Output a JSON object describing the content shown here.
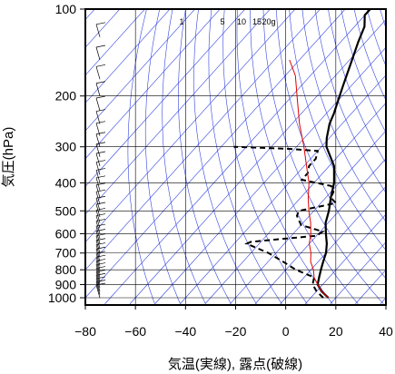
{
  "chart_data": {
    "type": "line",
    "subtype": "skew-t-log-p",
    "xlabel": "気温(実線), 露点(破線)",
    "ylabel": "気圧(hPa)",
    "xlim": [
      -80,
      40
    ],
    "ylim": [
      1050,
      100
    ],
    "y_scale": "log",
    "x_ticks": [
      -80,
      -60,
      -40,
      -20,
      0,
      20,
      40
    ],
    "x_tick_labels": [
      "−80",
      "−60",
      "−40",
      "−20",
      "0",
      "20",
      "40"
    ],
    "y_ticks": [
      100,
      200,
      300,
      400,
      500,
      600,
      700,
      800,
      900,
      1000
    ],
    "y_tick_labels": [
      "100",
      "200",
      "300",
      "400",
      "500",
      "600",
      "700",
      "800",
      "900",
      "1000"
    ],
    "mixing_ratio_labels": [
      "1",
      "5",
      "10",
      "15",
      "20g"
    ],
    "grid": true,
    "colors": {
      "temperature": "#000000",
      "dewpoint": "#000000",
      "parcel": "#e00000",
      "isotherm": "#3344dd",
      "dry_adiabat": "#3344dd",
      "grid": "#000000"
    },
    "series": [
      {
        "name": "",
        "style": "solid",
        "points": [
          [
            1000,
            17
          ],
          [
            950,
            12
          ],
          [
            900,
            8
          ],
          [
            850,
            6
          ],
          [
            800,
            4
          ],
          [
            750,
            2
          ],
          [
            700,
            0
          ],
          [
            650,
            -3
          ],
          [
            600,
            -7
          ],
          [
            550,
            -11
          ],
          [
            500,
            -14
          ],
          [
            450,
            -18
          ],
          [
            400,
            -22
          ],
          [
            350,
            -28
          ],
          [
            300,
            -38
          ],
          [
            280,
            -41
          ],
          [
            250,
            -45
          ],
          [
            230,
            -47
          ],
          [
            200,
            -51
          ],
          [
            180,
            -54
          ],
          [
            150,
            -59
          ],
          [
            130,
            -63
          ],
          [
            115,
            -66
          ],
          [
            105,
            -70
          ],
          [
            100,
            -70
          ]
        ]
      },
      {
        "name": "",
        "style": "dashed",
        "points": [
          [
            1000,
            15
          ],
          [
            950,
            10
          ],
          [
            900,
            6
          ],
          [
            850,
            4
          ],
          [
            800,
            -6
          ],
          [
            750,
            -14
          ],
          [
            700,
            -23
          ],
          [
            650,
            -35
          ],
          [
            640,
            -34
          ],
          [
            610,
            -10
          ],
          [
            590,
            -9
          ],
          [
            560,
            -20
          ],
          [
            520,
            -25
          ],
          [
            500,
            -26
          ],
          [
            470,
            -14
          ],
          [
            450,
            -18
          ],
          [
            430,
            -19
          ],
          [
            410,
            -22
          ],
          [
            390,
            -36
          ],
          [
            370,
            -36
          ],
          [
            350,
            -38
          ],
          [
            330,
            -38
          ],
          [
            310,
            -40
          ],
          [
            305,
            -52
          ],
          [
            300,
            -75
          ]
        ]
      },
      {
        "name": "",
        "style": "solid-thin",
        "points": [
          [
            1000,
            17
          ],
          [
            950,
            12
          ],
          [
            900,
            8
          ],
          [
            850,
            4
          ],
          [
            800,
            1
          ],
          [
            750,
            -3
          ],
          [
            700,
            -6
          ],
          [
            650,
            -10
          ],
          [
            600,
            -13
          ],
          [
            550,
            -17
          ],
          [
            500,
            -22
          ],
          [
            450,
            -27
          ],
          [
            400,
            -32
          ],
          [
            350,
            -39
          ],
          [
            300,
            -47
          ],
          [
            250,
            -57
          ],
          [
            200,
            -68
          ],
          [
            170,
            -76
          ],
          [
            150,
            -84
          ]
        ]
      }
    ]
  }
}
